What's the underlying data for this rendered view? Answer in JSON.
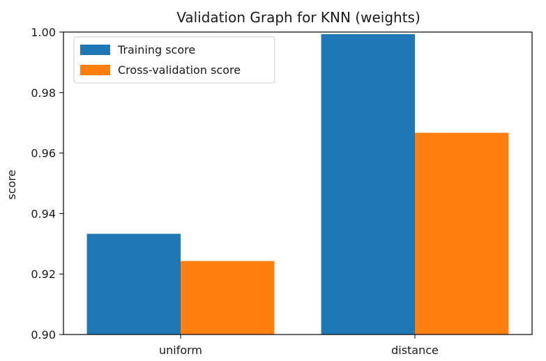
{
  "chart_data": {
    "type": "bar",
    "title": "Validation Graph for KNN (weights)",
    "xlabel": "",
    "ylabel": "score",
    "categories": [
      "uniform",
      "distance"
    ],
    "series": [
      {
        "name": "Training score",
        "values": [
          0.9333,
          0.9993
        ],
        "color": "#1f77b4"
      },
      {
        "name": "Cross-validation score",
        "values": [
          0.9243,
          0.9667
        ],
        "color": "#ff7f0e"
      }
    ],
    "ylim": [
      0.9,
      1.0
    ],
    "yticks": [
      "0.90",
      "0.92",
      "0.94",
      "0.96",
      "0.98",
      "1.00"
    ],
    "grid": false,
    "legend_position": "top-left"
  }
}
